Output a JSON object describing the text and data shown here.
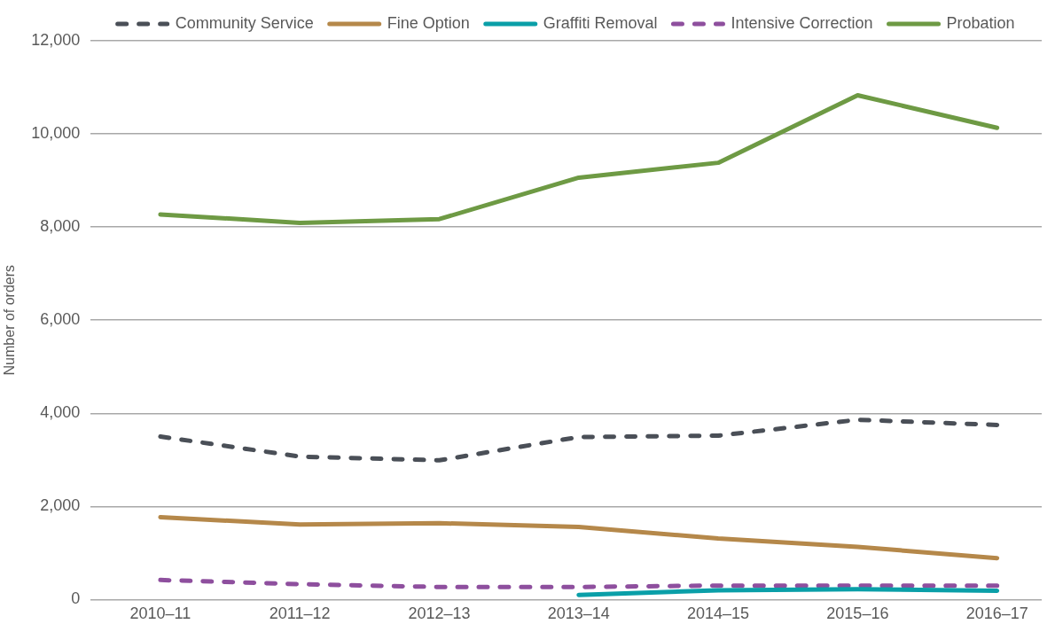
{
  "chart_data": {
    "type": "line",
    "categories": [
      "2010–11",
      "2011–12",
      "2012–13",
      "2013–14",
      "2014–15",
      "2015–16",
      "2016–17"
    ],
    "ylabel": "Number of orders",
    "ylim": [
      0,
      12000
    ],
    "yticks": [
      0,
      {
        "value": 2000,
        "label": "2,000"
      },
      {
        "value": 4000,
        "label": "4,000"
      },
      {
        "value": 6000,
        "label": "6,000"
      },
      {
        "value": 8000,
        "label": "8,000"
      },
      {
        "value": 10000,
        "label": "10,000"
      },
      {
        "value": 12000,
        "label": "12,000"
      }
    ],
    "grid": "y",
    "legend": "top",
    "marker": "none",
    "series": [
      {
        "name": "Community Service",
        "color": "#4a4f57",
        "line_style": "dashed",
        "values": [
          3500,
          3070,
          2990,
          3490,
          3520,
          3860,
          3750
        ]
      },
      {
        "name": "Fine Option",
        "color": "#b5884a",
        "values": [
          1770,
          1610,
          1640,
          1560,
          1310,
          1130,
          890
        ]
      },
      {
        "name": "Graffiti Removal",
        "color": "#0a9fa8",
        "values": [
          null,
          null,
          null,
          100,
          200,
          220,
          190
        ]
      },
      {
        "name": "Intensive Correction",
        "color": "#8e4f9e",
        "line_style": "dashed",
        "values": [
          420,
          330,
          270,
          270,
          300,
          300,
          300
        ]
      },
      {
        "name": "Probation",
        "color": "#6e9a44",
        "values": [
          8270,
          8090,
          8170,
          9060,
          9380,
          10830,
          10130
        ]
      }
    ]
  }
}
